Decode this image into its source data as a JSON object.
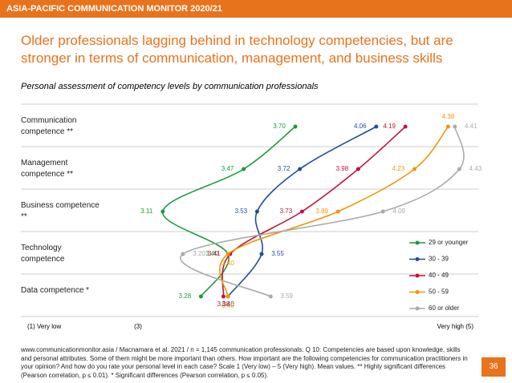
{
  "header": "ASIA-PACIFIC COMMUNICATION MONITOR 2020/21",
  "title": "Older professionals lagging behind in technology competencies, but are stronger in terms of communication, management, and business skills",
  "page_number": "36",
  "footnote": "www.communicationmonitor.asia / Macnamara et al. 2021 / n = 1,145 communication professionals. Q 10: Competencies are based upon knowledge, skills and personal attributes. Some of them might be more important than others. How important are the following competencies for communication practitioners in your opinion? And how do you rate your personal level in each case? Scale 1 (Very low) – 5 (Very high). Mean values. ** Highly significant differences (Pearson correlation, p ≤ 0.01). * Significant differences (Pearson correlation, p ≤ 0.05).",
  "chart_data": {
    "type": "line",
    "title": "Personal assessment of competency levels by communication professionals",
    "categories": [
      "Communication competence **",
      "Management competence **",
      "Business competence **",
      "Technology competence",
      "Data competence *"
    ],
    "x_low_label": "(1) Very low",
    "x_high_label": "Very high (5)",
    "xlim": [
      3,
      4.5
    ],
    "xticks": [
      {
        "value": 3,
        "label": "(3)"
      }
    ],
    "series": [
      {
        "name": "29 or younger",
        "color": "#1a9a3a",
        "values": [
          3.7,
          3.47,
          3.11,
          3.4,
          3.28
        ],
        "value_labels": [
          "3.70",
          "3.47",
          "3.11",
          "3.40",
          "3.28"
        ]
      },
      {
        "name": "30 - 39",
        "color": "#1f4e9c",
        "values": [
          4.06,
          3.72,
          3.53,
          3.55,
          3.4
        ],
        "value_labels": [
          "4.06",
          "3.72",
          "3.53",
          "3.55",
          "3.40"
        ]
      },
      {
        "name": "40 - 49",
        "color": "#c0143c",
        "values": [
          4.19,
          3.98,
          3.73,
          3.41,
          3.38
        ],
        "value_labels": [
          "4.19",
          "3.98",
          "3.73",
          "3.41",
          "3.38"
        ]
      },
      {
        "name": "50 - 59",
        "color": "#f0960a",
        "values": [
          4.38,
          4.23,
          3.89,
          3.4,
          3.4
        ],
        "value_labels": [
          "4.38",
          "4.23",
          "3.89",
          "3.40",
          "3.40"
        ]
      },
      {
        "name": "60 or older",
        "color": "#aaaaaa",
        "values": [
          4.41,
          4.43,
          4.09,
          3.2,
          3.59
        ],
        "value_labels": [
          "4.41",
          "4.43",
          "4.09",
          "3.20",
          "3.59"
        ]
      }
    ]
  }
}
